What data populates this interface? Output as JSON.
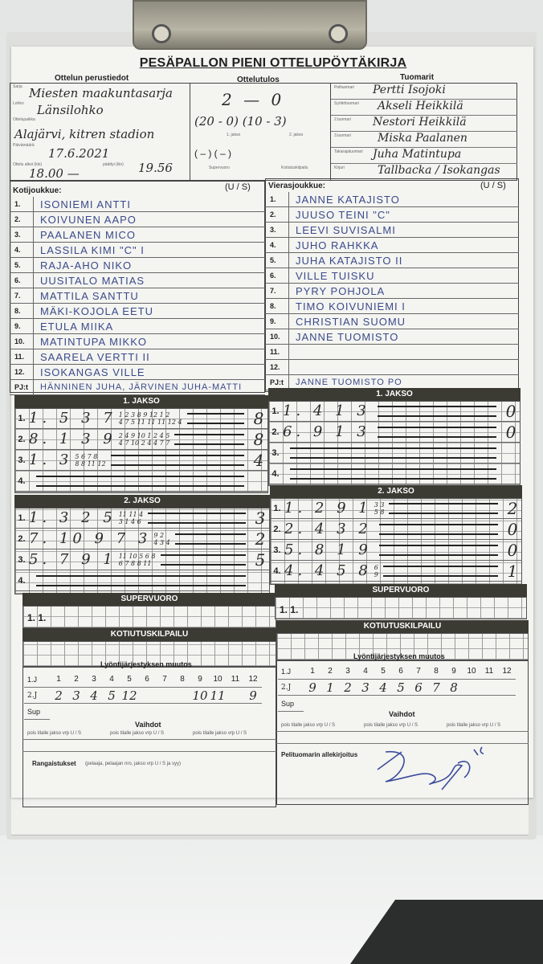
{
  "form_title": "PESÄPALLON PIENI OTTELUPÖYTÄKIRJA",
  "sections": {
    "basic": "Ottelun perustiedot",
    "result": "Ottelutulos",
    "referees": "Tuomarit"
  },
  "basic_labels": {
    "series": "Sarja",
    "group": "Lohko",
    "venue": "Ottelupaikka",
    "date": "Päivämäärä",
    "start": "Ottelu alkoi (klo)",
    "end": "päättyi (klo)"
  },
  "basic": {
    "series": "Miesten maakuntasarja",
    "group": "Länsilohko",
    "venue": "Alajärvi, kitren stadion",
    "date": "17.6.2021",
    "start": "18.00 —",
    "end": "19.56"
  },
  "result": {
    "score": "2 — 0",
    "periods": "(20 - 0)  (10 - 3)",
    "period1_label": "1. jakso",
    "period2_label": "2. jakso",
    "extra": "(   –   )  (   –   )",
    "super_label": "Supervuoro",
    "homerun_label": "Kotiutuskilpailu"
  },
  "referee_labels": [
    "Pelituomari",
    "Syöttötuomari",
    "2.tuomari",
    "3.tuomari",
    "Takarajatuomari",
    "Kirjuri"
  ],
  "referees": [
    "Pertti Isojoki",
    "Akseli Heikkilä",
    "Nestori Heikkilä",
    "Miska Paalanen",
    "Juha Matintupa",
    "Tallbacka / Isokangas"
  ],
  "us_label": "(U / S)",
  "home": {
    "label": "Kotijoukkue:",
    "players": [
      "ISONIEMI ANTTI",
      "KOIVUNEN AAPO",
      "PAALANEN MICO",
      "LASSILA KIMI \"C\"   I",
      "RAJA-AHO NIKO",
      "UUSITALO MATIAS",
      "MATTILA SANTTU",
      "MÄKI-KOJOLA EETU",
      "ETULA MIIKA",
      "MATINTUPA MIKKO",
      "SAARELA VERTTI   II",
      "ISOKANGAS VILLE"
    ],
    "pj_label": "PJ:t",
    "pj": "HÄNNINEN JUHA, JÄRVINEN JUHA-MATTI"
  },
  "away": {
    "label": "Vierasjoukkue:",
    "players": [
      "Janne Katajisto",
      "Juuso Teini \"C\"",
      "Leevi Suvisalmi",
      "Juho Rahkka",
      "Juha Katajisto   II",
      "Ville Tuisku",
      "Pyry Pohjola",
      "Timo Koivuniemi   I",
      "Christian Suomu",
      "Janne Tuomisto",
      "",
      ""
    ],
    "pj_label": "PJ:t",
    "pj": "Janne Tuomisto  PO"
  },
  "innings": {
    "period1_label": "1. JAKSO",
    "period2_label": "2. JAKSO",
    "super_label": "SUPERVUORO",
    "homerun_label": "KOTIUTUSKILPAILU",
    "home_p1": [
      {
        "n": "1.",
        "bats": "1. 5 3 7",
        "top": "1 2 3 8 9 12 1 2",
        "bot": "4 7 5 11 11 11 12 4",
        "runs": "8"
      },
      {
        "n": "2.",
        "bats": "8. 1 3 9",
        "top": "2 4 9 10 1 2 4 5",
        "bot": "4 7 10 2 4 4 7 7",
        "runs": "8"
      },
      {
        "n": "3.",
        "bats": "1. 3",
        "top": "5 6 7 8",
        "bot": "8 8 11 12",
        "runs": "4"
      },
      {
        "n": "4.",
        "bats": "",
        "top": "",
        "bot": "",
        "runs": ""
      }
    ],
    "away_p1": [
      {
        "n": "1.",
        "bats": "1. 4 1 3",
        "top": "",
        "bot": "",
        "runs": "0"
      },
      {
        "n": "2.",
        "bats": "6. 9 1 3",
        "top": "",
        "bot": "",
        "runs": "0"
      },
      {
        "n": "3.",
        "bats": "",
        "top": "",
        "bot": "",
        "runs": ""
      },
      {
        "n": "4.",
        "bats": "",
        "top": "",
        "bot": "",
        "runs": ""
      }
    ],
    "home_p2": [
      {
        "n": "1.",
        "bats": "1. 3 2 5",
        "top": "11 11 4",
        "bot": "3 1 4 6",
        "runs": "3"
      },
      {
        "n": "2.",
        "bats": "7. 10 9 7 3",
        "top": "9 2",
        "bot": "4 3 4",
        "runs": "2"
      },
      {
        "n": "3.",
        "bats": "5. 7 9 1",
        "top": "11 10 5 6 8",
        "bot": "6 7 8 8 11",
        "runs": "5"
      },
      {
        "n": "4.",
        "bats": "",
        "top": "",
        "bot": "",
        "runs": ""
      }
    ],
    "away_p2": [
      {
        "n": "1.",
        "bats": "1. 2 9 1",
        "top": "3 3",
        "bot": "5 8",
        "runs": "2"
      },
      {
        "n": "2.",
        "bats": "2. 4 3 2",
        "top": "",
        "bot": "",
        "runs": "0"
      },
      {
        "n": "3.",
        "bats": "5. 8 1 9",
        "top": "",
        "bot": "",
        "runs": "0"
      },
      {
        "n": "4.",
        "bats": "4. 4 5 8",
        "top": "6",
        "bot": "9",
        "runs": "1"
      }
    ],
    "super_row": "1.  1."
  },
  "order": {
    "label": "Lyöntijärjestyksen muutos",
    "row_labels": [
      "1.J",
      "2.J",
      "Sup"
    ],
    "positions": [
      "1",
      "2",
      "3",
      "4",
      "5",
      "6",
      "7",
      "8",
      "9",
      "10",
      "11",
      "12"
    ],
    "home_2j": [
      "2",
      "3",
      "4",
      "5",
      "12",
      "",
      "",
      "",
      "10",
      "11",
      "",
      "9"
    ],
    "away_2j": [
      "9",
      "1",
      "2",
      "3",
      "4",
      "5",
      "6",
      "7",
      "8",
      "",
      "",
      ""
    ]
  },
  "subs": {
    "label": "Vaihdot",
    "cols": "pois   tilalle  jakso vrp U / S"
  },
  "penalties_label": "Rangaistukset",
  "penalties_hint": "(pelaaja, pelaajan nro, jakso vrp U / S ja syy)",
  "signature_label": "Pelituomarin allekirjoitus",
  "colors": {
    "header_bar": "#3b3a33",
    "ink_blue": "#3a4a8a",
    "paper": "#f4f4f1"
  }
}
